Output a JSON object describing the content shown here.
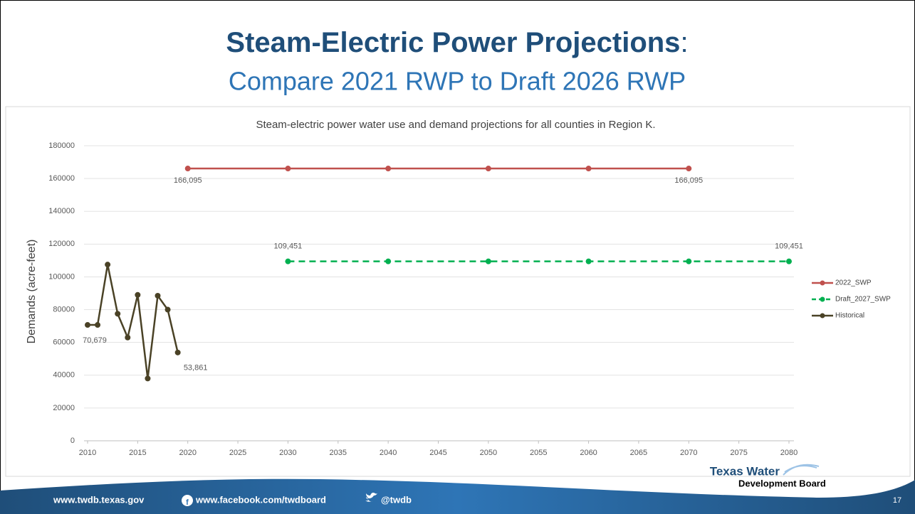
{
  "header": {
    "title": "Steam-Electric Power Projections",
    "title_suffix": ":",
    "subtitle": "Compare 2021 RWP to Draft 2026 RWP"
  },
  "chart_data": {
    "type": "line",
    "title": "Steam-electric power water use and demand projections for all counties in Region K.",
    "y_label": "Demands (acre-feet)",
    "xlim": [
      2010,
      2080
    ],
    "xticks": [
      2010,
      2015,
      2020,
      2025,
      2030,
      2035,
      2040,
      2045,
      2050,
      2055,
      2060,
      2065,
      2070,
      2075,
      2080
    ],
    "ylim": [
      0,
      180000
    ],
    "yticks": [
      0,
      20000,
      40000,
      60000,
      80000,
      100000,
      120000,
      140000,
      160000,
      180000
    ],
    "grid": true,
    "legend": "right",
    "series": [
      {
        "name": "2022_SWP",
        "color": "#c0504d",
        "dashed": false,
        "x": [
          2020,
          2030,
          2040,
          2050,
          2060,
          2070
        ],
        "values": [
          166095,
          166095,
          166095,
          166095,
          166095,
          166095
        ],
        "value_labels": [
          "166,095",
          null,
          null,
          null,
          null,
          "166,095"
        ]
      },
      {
        "name": "Draft_2027_SWP",
        "color": "#00b050",
        "dashed": true,
        "x": [
          2030,
          2040,
          2050,
          2060,
          2070,
          2080
        ],
        "values": [
          109451,
          109451,
          109451,
          109451,
          109451,
          109451
        ],
        "value_labels": [
          "109,451",
          null,
          null,
          null,
          null,
          "109,451"
        ]
      },
      {
        "name": "Historical",
        "color": "#4a4226",
        "dashed": false,
        "x": [
          2010,
          2011,
          2012,
          2013,
          2014,
          2015,
          2016,
          2017,
          2018,
          2019
        ],
        "values": [
          70679,
          70679,
          107500,
          77500,
          63000,
          89000,
          38000,
          88500,
          80000,
          53861
        ],
        "value_labels": [
          "70,679",
          null,
          null,
          null,
          null,
          null,
          null,
          null,
          null,
          "53,861"
        ]
      }
    ]
  },
  "footer": {
    "website": "www.twdb.texas.gov",
    "facebook": "www.facebook.com/twdboard",
    "twitter": "@twdb",
    "logo_top": "Texas Water",
    "logo_bottom": "Development Board",
    "page": "17"
  }
}
